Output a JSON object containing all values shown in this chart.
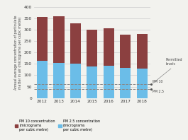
{
  "years": [
    2012,
    2013,
    2014,
    2015,
    2016,
    2017,
    2018
  ],
  "pm10": [
    355,
    358,
    328,
    300,
    305,
    280,
    281
  ],
  "pm25": [
    163,
    153,
    151,
    138,
    141,
    133,
    130
  ],
  "pm10_color": "#8B4040",
  "pm25_color": "#6BBDE8",
  "pm10_permitted": 60,
  "pm25_permitted": 40,
  "ylabel": "Annual average concentration of particulate\nmatter in air (micrograms per cubic metre)",
  "ylim": [
    0,
    400
  ],
  "yticks": [
    0,
    50,
    100,
    150,
    200,
    250,
    300,
    350,
    400
  ],
  "bg_color": "#F2F2EE",
  "grid_color": "#CCCCCC",
  "permitted_label": "Permitted\nlevels",
  "pm10_label": "PM 10",
  "pm25_label": "PM 2.5",
  "legend_pm10": "PM 10 concentration\n(micrograms\nper cubic metre)",
  "legend_pm25": "PM 2.5 concentration\n(micrograms\nper cubic metre)"
}
